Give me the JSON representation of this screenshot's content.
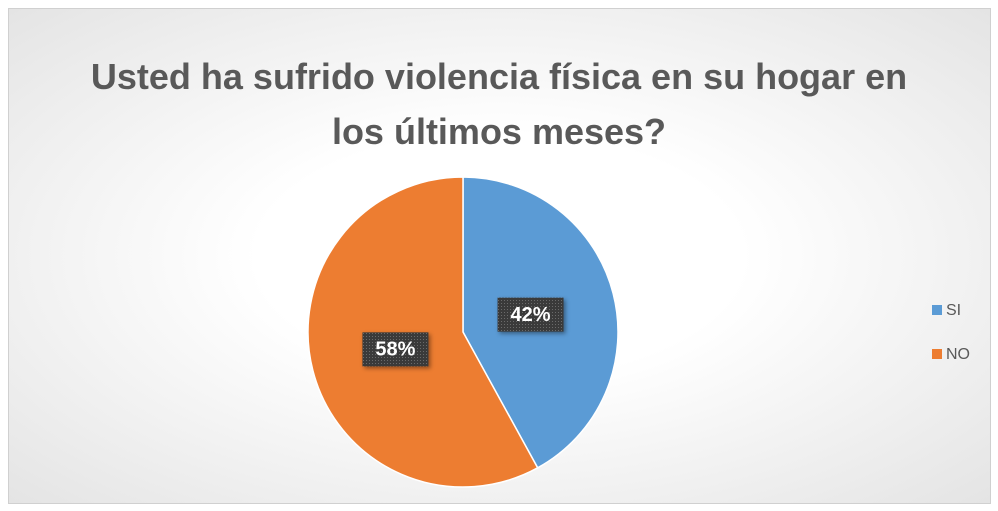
{
  "chart_data": {
    "type": "pie",
    "title": "Usted ha sufrido violencia física en su hogar en los últimos meses?",
    "categories": [
      "SI",
      "NO"
    ],
    "values": [
      42,
      58
    ],
    "value_labels": [
      "42%",
      "58%"
    ],
    "colors": [
      "#5b9bd5",
      "#ed7d31"
    ],
    "legend": "right"
  }
}
